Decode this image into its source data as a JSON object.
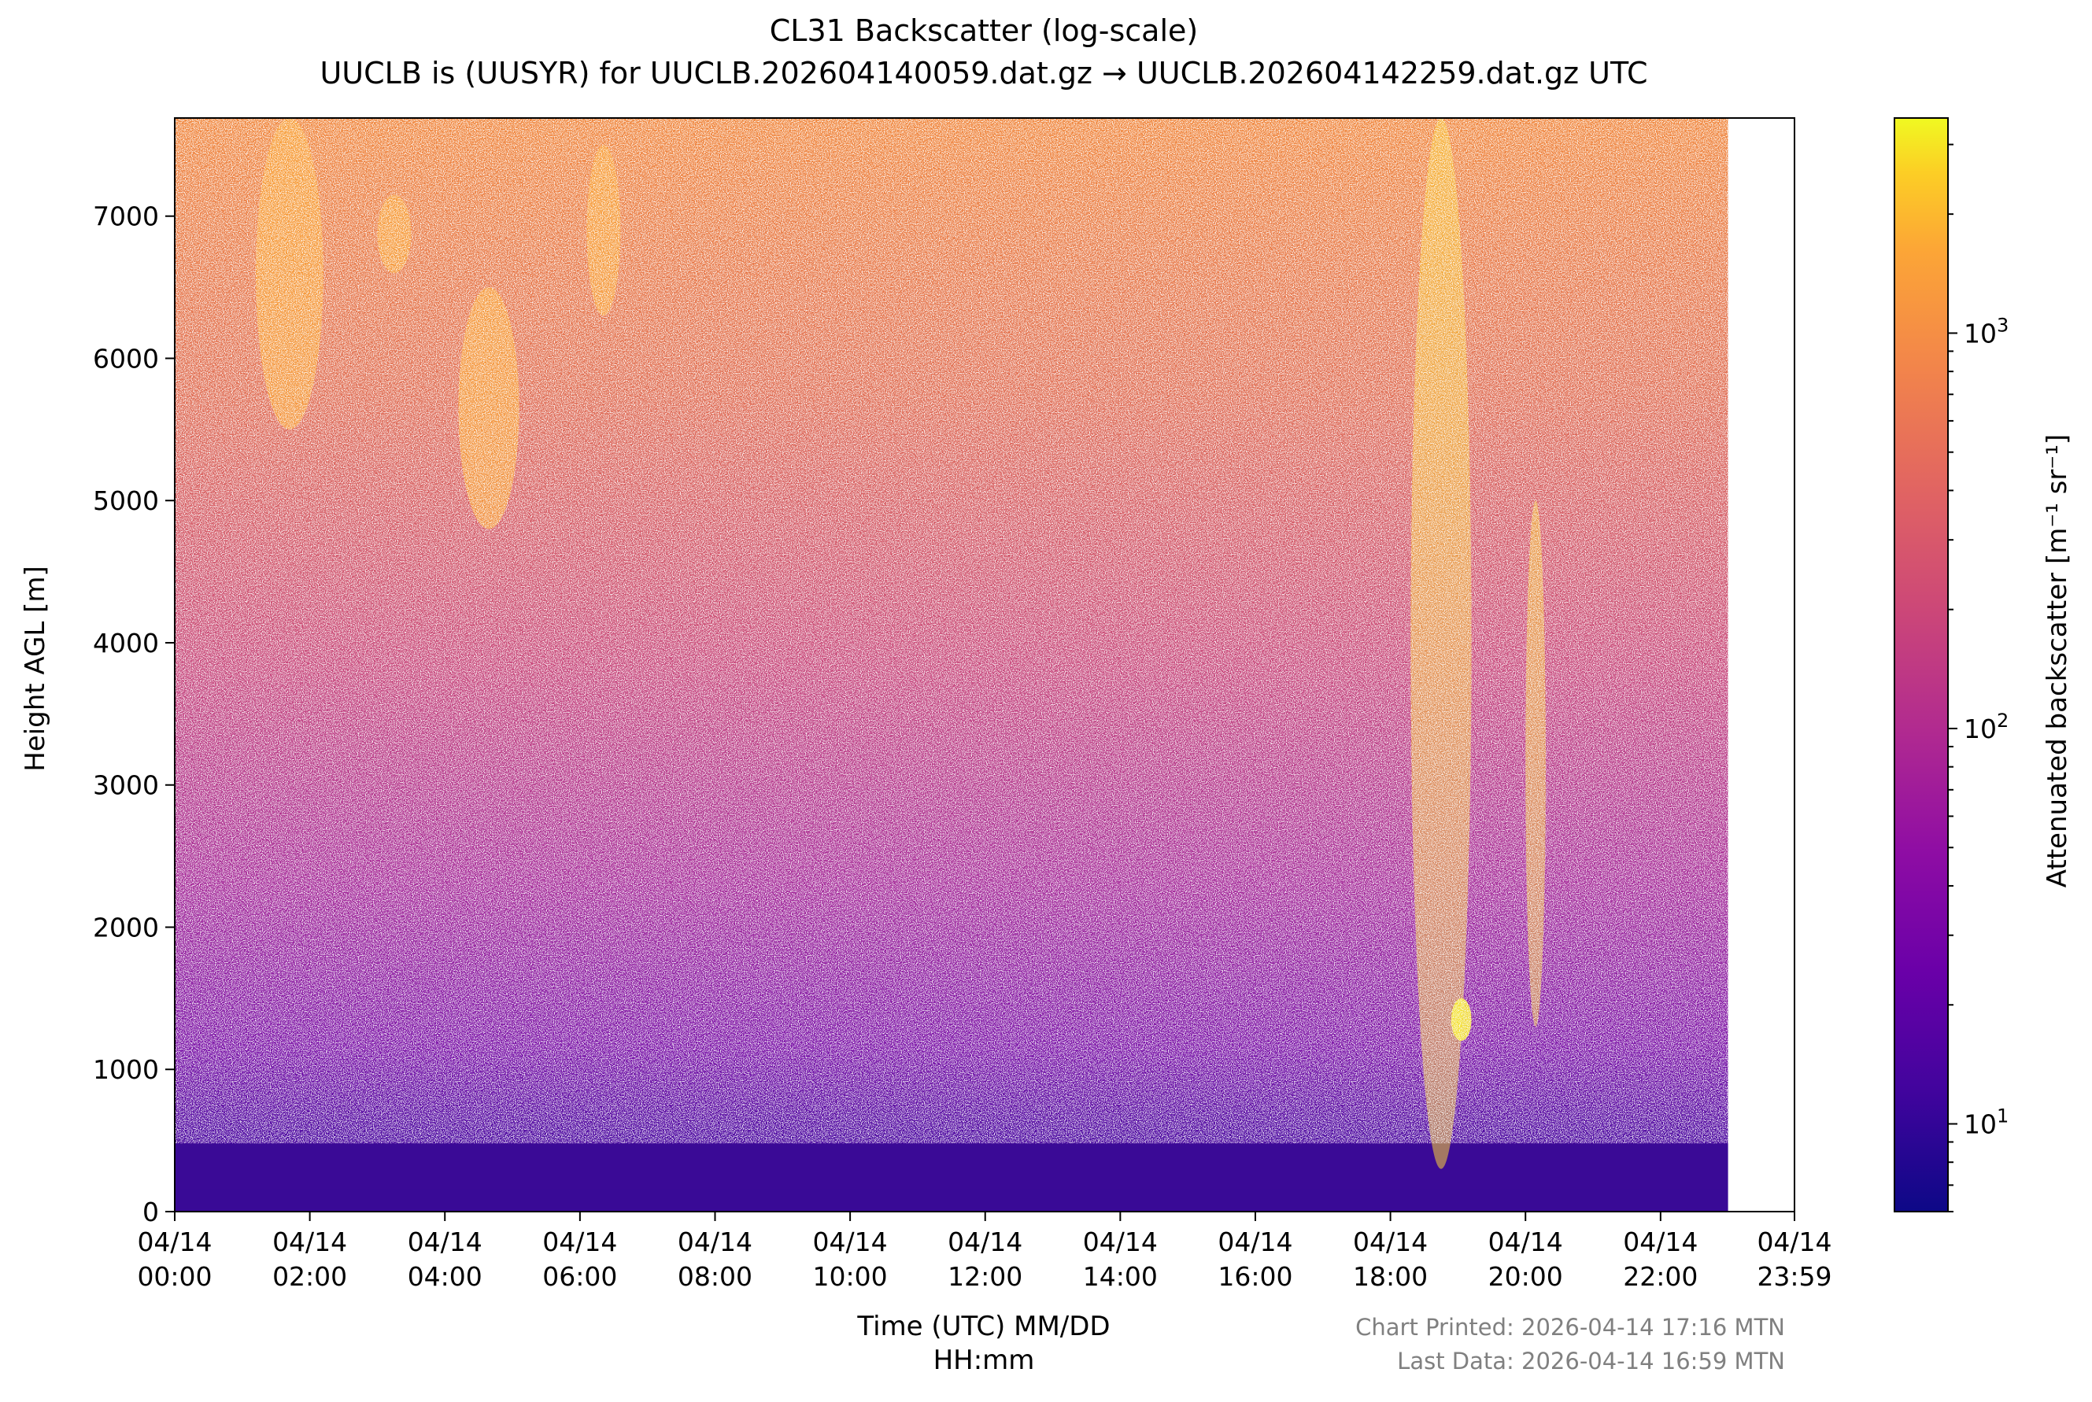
{
  "chart_data": {
    "type": "heatmap",
    "title": "CL31 Backscatter (log-scale)",
    "subtitle": "UUCLB is (UUSYR) for UUCLB.202604140059.dat.gz → UUCLB.202604142259.dat.gz UTC",
    "xlabel_line1": "Time (UTC) MM/DD",
    "xlabel_line2": "HH:mm",
    "ylabel": "Height AGL [m]",
    "colorbar_label": "Attenuated backscatter [m⁻¹ sr⁻¹]",
    "colormap": "plasma",
    "x_ticks": [
      {
        "date": "04/14",
        "time": "00:00",
        "hours": 0
      },
      {
        "date": "04/14",
        "time": "02:00",
        "hours": 2
      },
      {
        "date": "04/14",
        "time": "04:00",
        "hours": 4
      },
      {
        "date": "04/14",
        "time": "06:00",
        "hours": 6
      },
      {
        "date": "04/14",
        "time": "08:00",
        "hours": 8
      },
      {
        "date": "04/14",
        "time": "10:00",
        "hours": 10
      },
      {
        "date": "04/14",
        "time": "12:00",
        "hours": 12
      },
      {
        "date": "04/14",
        "time": "14:00",
        "hours": 14
      },
      {
        "date": "04/14",
        "time": "16:00",
        "hours": 16
      },
      {
        "date": "04/14",
        "time": "18:00",
        "hours": 18
      },
      {
        "date": "04/14",
        "time": "20:00",
        "hours": 20
      },
      {
        "date": "04/14",
        "time": "22:00",
        "hours": 22
      },
      {
        "date": "04/14",
        "time": "23:59",
        "hours": 23.983
      }
    ],
    "y_ticks": [
      0,
      1000,
      2000,
      3000,
      4000,
      5000,
      6000,
      7000
    ],
    "xlim_hours": [
      0,
      23.983
    ],
    "data_end_hours": 23.0,
    "ylim": [
      0,
      7690
    ],
    "colorbar_ticks": [
      {
        "base": "10",
        "exp": "1",
        "value": 10
      },
      {
        "base": "10",
        "exp": "2",
        "value": 100
      },
      {
        "base": "10",
        "exp": "3",
        "value": 1000
      }
    ],
    "colorbar_range": [
      6,
      3500
    ],
    "colorbar_scale": "log",
    "features": [
      {
        "kind": "aerosol-layer",
        "t_start": 0,
        "t_end": 23.0,
        "h_min": 0,
        "h_max": 480
      },
      {
        "kind": "plume",
        "t_start": 1.2,
        "t_end": 2.2,
        "h_min": 5500,
        "h_max": 7690
      },
      {
        "kind": "plume",
        "t_start": 3.0,
        "t_end": 3.5,
        "h_min": 6600,
        "h_max": 7150
      },
      {
        "kind": "plume",
        "t_start": 4.2,
        "t_end": 5.1,
        "h_min": 4800,
        "h_max": 6500
      },
      {
        "kind": "plume",
        "t_start": 6.1,
        "t_end": 6.6,
        "h_min": 6300,
        "h_max": 7500
      },
      {
        "kind": "streak",
        "t_start": 18.3,
        "t_end": 19.2,
        "h_min": 300,
        "h_max": 7690
      },
      {
        "kind": "cloud",
        "t_start": 18.9,
        "t_end": 19.2,
        "h_min": 1200,
        "h_max": 1500
      },
      {
        "kind": "streak",
        "t_start": 20.0,
        "t_end": 20.3,
        "h_min": 1300,
        "h_max": 5000
      }
    ]
  },
  "footer": {
    "printed": "Chart Printed: 2026-04-14 17:16 MTN",
    "last_data": "Last Data: 2026-04-14 16:59 MTN"
  }
}
